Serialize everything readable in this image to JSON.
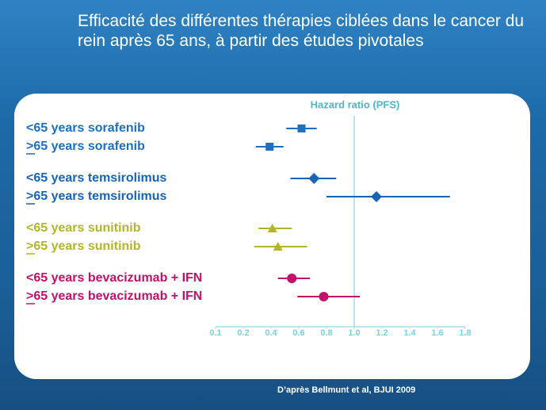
{
  "chart_data": {
    "type": "forest",
    "title": "Efficacité des différentes thérapies ciblées dans le cancer du rein après 65 ans, à partir des études pivotales",
    "xlabel": "Hazard ratio (PFS)",
    "categories": [
      "<65 years sorafenib",
      ">65 years sorafenib",
      "<65 years temsirolimus",
      ">65 years temsirolimus",
      "<65 years sunitinib",
      ">65 years sunitinib",
      "<65 years bevacizumab + IFN",
      ">65 years bevacizumab + IFN"
    ],
    "values": [
      0.62,
      0.39,
      0.71,
      1.16,
      0.41,
      0.45,
      0.55,
      0.78
    ],
    "ci_low": [
      0.51,
      0.29,
      0.54,
      0.8,
      0.31,
      0.28,
      0.45,
      0.59
    ],
    "ci_high": [
      0.73,
      0.49,
      0.87,
      1.69,
      0.55,
      0.66,
      0.68,
      1.04
    ],
    "colors": [
      "#1f6fc0",
      "#1f6fc0",
      "#1a63b5",
      "#1a63b5",
      "#b3b52a",
      "#b3b52a",
      "#c2106b",
      "#c2106b"
    ],
    "markers": [
      "square",
      "square",
      "diamond",
      "diamond",
      "triangle",
      "triangle",
      "circle",
      "circle"
    ],
    "xlim": [
      0.1,
      1.8
    ],
    "xticks": [
      0.1,
      0.2,
      0.4,
      0.6,
      0.8,
      {
        "value": 1.0,
        "label": "1.0"
      },
      1.2,
      1.4,
      1.6,
      1.8
    ],
    "reference_line": 1,
    "source": "D’après Bellmunt  et al, BJUI 2009"
  }
}
